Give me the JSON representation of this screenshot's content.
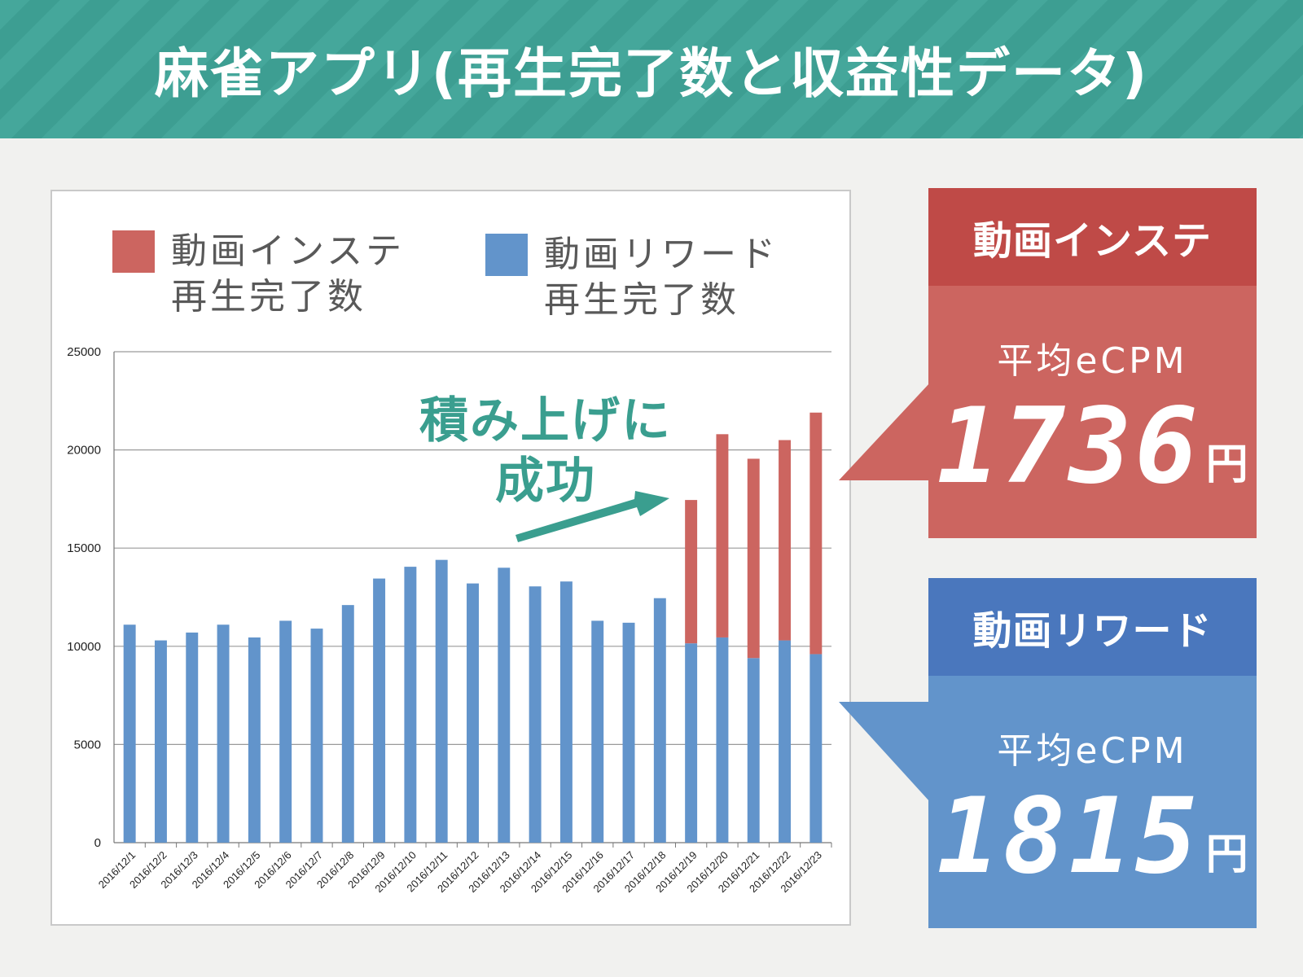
{
  "title": "麻雀アプリ(再生完了数と収益性データ)",
  "colors": {
    "header_bg": "#45a79b",
    "instant": "#cc6560",
    "instant_head": "#bf4a47",
    "reward": "#6294cb",
    "reward_head": "#4a77bd",
    "annotation": "#3a9e8f"
  },
  "legend": [
    {
      "line1": "動画インステ",
      "line2": "再生完了数",
      "color": "#cc6560"
    },
    {
      "line1": "動画リワード",
      "line2": "再生完了数",
      "color": "#6294cb"
    }
  ],
  "annotation": {
    "line1": "積み上げに",
    "line2": "成功"
  },
  "callouts": {
    "instant": {
      "head": "動画インステ",
      "sub": "平均eCPM",
      "value": "1736",
      "unit": "円"
    },
    "reward": {
      "head": "動画リワード",
      "sub": "平均eCPM",
      "value": "1815",
      "unit": "円"
    }
  },
  "chart_data": {
    "type": "bar",
    "stacked": true,
    "categories": [
      "2016/12/1",
      "2016/12/2",
      "2016/12/3",
      "2016/12/4",
      "2016/12/5",
      "2016/12/6",
      "2016/12/7",
      "2016/12/8",
      "2016/12/9",
      "2016/12/10",
      "2016/12/11",
      "2016/12/12",
      "2016/12/13",
      "2016/12/14",
      "2016/12/15",
      "2016/12/16",
      "2016/12/17",
      "2016/12/18",
      "2016/12/19",
      "2016/12/20",
      "2016/12/21",
      "2016/12/22",
      "2016/12/23"
    ],
    "series": [
      {
        "name": "動画リワード再生完了数",
        "color": "#6294cb",
        "values": [
          11100,
          10300,
          10700,
          11100,
          10450,
          11300,
          10900,
          12100,
          13450,
          14050,
          14400,
          13200,
          14000,
          13050,
          13300,
          11300,
          11200,
          12450,
          10150,
          10450,
          9400,
          10300,
          9600
        ]
      },
      {
        "name": "動画インステ再生完了数",
        "color": "#cc6560",
        "values": [
          0,
          0,
          0,
          0,
          0,
          0,
          0,
          0,
          0,
          0,
          0,
          0,
          0,
          0,
          0,
          0,
          0,
          0,
          7300,
          10350,
          10150,
          10200,
          12300
        ]
      }
    ],
    "yticks": [
      "0",
      "5000",
      "10000",
      "15000",
      "20000",
      "25000"
    ],
    "ylim": [
      0,
      25000
    ],
    "grid": true,
    "legend_position": "top"
  }
}
